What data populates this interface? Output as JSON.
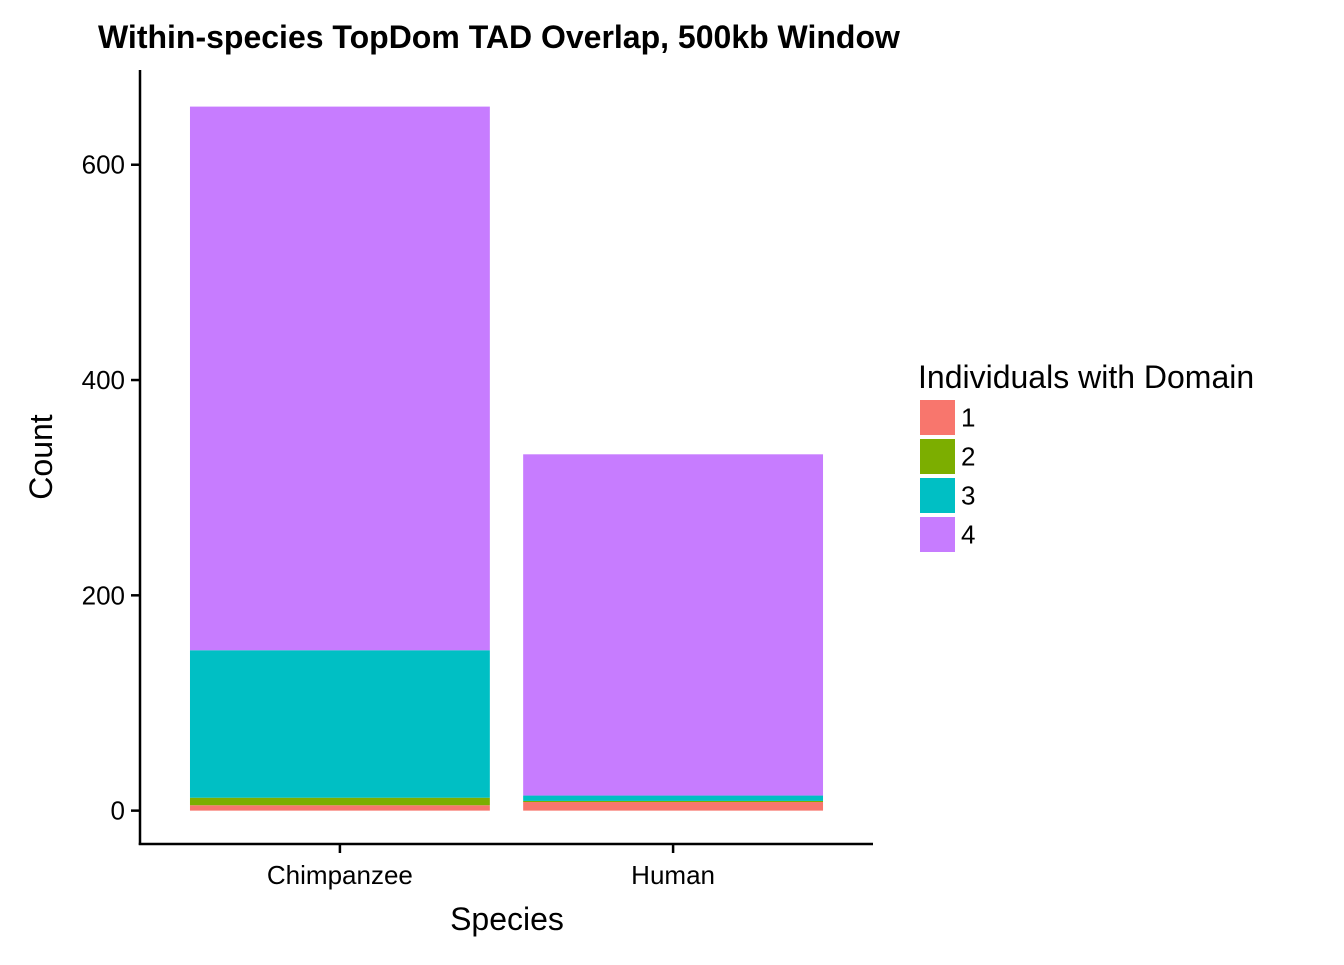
{
  "chart_data": {
    "type": "bar",
    "stacked": true,
    "title": "Within-species TopDom TAD Overlap, 500kb Window",
    "xlabel": "Species",
    "ylabel": "Count",
    "categories": [
      "Chimpanzee",
      "Human"
    ],
    "ylim": [
      -31,
      688
    ],
    "yticks": [
      0,
      200,
      400,
      600
    ],
    "series": [
      {
        "name": "1",
        "color": "#F8766D",
        "values": [
          5,
          8
        ]
      },
      {
        "name": "2",
        "color": "#7CAE00",
        "values": [
          7,
          1
        ]
      },
      {
        "name": "3",
        "color": "#00BFC4",
        "values": [
          137,
          5
        ]
      },
      {
        "name": "4",
        "color": "#C77CFF",
        "values": [
          505,
          317
        ]
      }
    ],
    "legend": {
      "title": "Individuals with Domain",
      "position": "right"
    },
    "grid": false
  }
}
